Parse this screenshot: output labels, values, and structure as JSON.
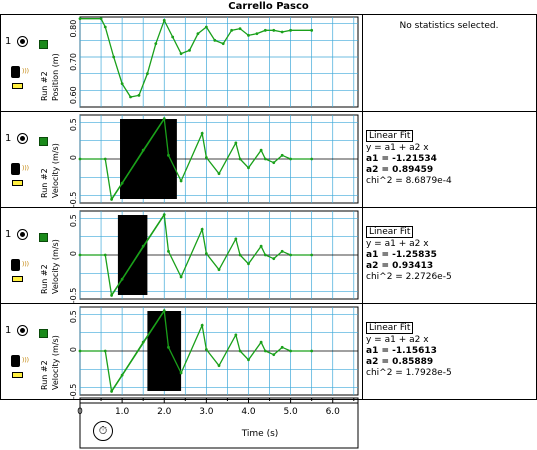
{
  "window": {
    "title": "Carrello Pasco"
  },
  "rows": [
    {
      "run": "1",
      "ylabel_run": "Run #2",
      "ylabel_qty": "Position (m)",
      "ticks": [
        "0.80",
        "0.70",
        "0.60"
      ]
    },
    {
      "run": "1",
      "ylabel_run": "Run #2",
      "ylabel_qty": "Velocity (m/s)",
      "ticks": [
        "0.5",
        "0",
        "-0.5"
      ]
    },
    {
      "run": "1",
      "ylabel_run": "Run #2",
      "ylabel_qty": "Velocity (m/s)",
      "ticks": [
        "0.5",
        "0",
        "-0.5"
      ]
    },
    {
      "run": "1",
      "ylabel_run": "Run #2",
      "ylabel_qty": "Velocity (m/s)",
      "ticks": [
        "0.5",
        "0",
        "-0.5"
      ]
    }
  ],
  "stats": {
    "none_text": "No statistics selected.",
    "fits": [
      {
        "label": "Linear Fit",
        "eq": "y = a1 + a2 x",
        "a1": "a1 = -1.21534",
        "a2": "a2 = 0.89459",
        "chi": "chi^2 = 8.6879e-4"
      },
      {
        "label": "Linear Fit",
        "eq": "y = a1 + a2 x",
        "a1": "a1 = -1.25835",
        "a2": "a2 = 0.93413",
        "chi": "chi^2 = 2.2726e-5"
      },
      {
        "label": "Linear Fit",
        "eq": "y = a1 + a2 x",
        "a1": "a1 = -1.15613",
        "a2": "a2 = 0.85889",
        "chi": "chi^2 = 1.7928e-5"
      }
    ]
  },
  "xaxis": {
    "label": "Time (s)",
    "ticks": [
      "0",
      "1.0",
      "2.0",
      "3.0",
      "4.0",
      "5.0",
      "6.0"
    ]
  },
  "colors": {
    "trace": "#1aa01a",
    "grid": "#3fa9d9",
    "select": "#000000"
  },
  "icons": {
    "timer": "stopwatch-icon",
    "sensor": "motion-sensor-icon"
  },
  "chart_data": [
    {
      "type": "line",
      "xlabel": "Time (s)",
      "ylabel": "Position (m)",
      "ylim": [
        0.55,
        0.82
      ],
      "x": [
        0,
        0.5,
        0.6,
        0.8,
        1.0,
        1.2,
        1.4,
        1.6,
        1.8,
        2.0,
        2.2,
        2.4,
        2.6,
        2.8,
        3.0,
        3.2,
        3.4,
        3.6,
        3.8,
        4.0,
        4.2,
        4.4,
        4.6,
        4.8,
        5.0,
        5.5
      ],
      "y": [
        0.815,
        0.815,
        0.79,
        0.7,
        0.62,
        0.58,
        0.585,
        0.65,
        0.74,
        0.81,
        0.76,
        0.71,
        0.72,
        0.77,
        0.79,
        0.75,
        0.74,
        0.78,
        0.785,
        0.765,
        0.77,
        0.78,
        0.78,
        0.775,
        0.78,
        0.78
      ]
    },
    {
      "type": "line",
      "xlabel": "Time (s)",
      "ylabel": "Velocity (m/s)",
      "ylim": [
        -0.6,
        0.6
      ],
      "x": [
        0,
        0.6,
        0.75,
        1.0,
        1.5,
        2.0,
        2.1,
        2.4,
        2.9,
        3.0,
        3.3,
        3.7,
        3.8,
        4.0,
        4.3,
        4.4,
        4.6,
        4.8,
        5.0,
        5.5
      ],
      "y": [
        0,
        0,
        -0.55,
        -0.33,
        0.12,
        0.55,
        0.05,
        -0.3,
        0.35,
        0.02,
        -0.2,
        0.22,
        0.0,
        -0.12,
        0.12,
        0,
        -0.05,
        0.05,
        0,
        0
      ]
    },
    {
      "type": "line",
      "xlabel": "Time (s)",
      "ylabel": "Velocity (m/s)",
      "ylim": [
        -0.6,
        0.6
      ],
      "x": [
        0,
        0.6,
        0.75,
        1.0,
        1.5,
        2.0,
        2.1,
        2.4,
        2.9,
        3.0,
        3.3,
        3.7,
        3.8,
        4.0,
        4.3,
        4.4,
        4.6,
        4.8,
        5.0,
        5.5
      ],
      "y": [
        0,
        0,
        -0.55,
        -0.33,
        0.12,
        0.55,
        0.05,
        -0.3,
        0.35,
        0.02,
        -0.2,
        0.22,
        0.0,
        -0.12,
        0.12,
        0,
        -0.05,
        0.05,
        0,
        0
      ]
    },
    {
      "type": "line",
      "xlabel": "Time (s)",
      "ylabel": "Velocity (m/s)",
      "ylim": [
        -0.6,
        0.6
      ],
      "x": [
        0,
        0.6,
        0.75,
        1.0,
        1.5,
        2.0,
        2.1,
        2.4,
        2.9,
        3.0,
        3.3,
        3.7,
        3.8,
        4.0,
        4.3,
        4.4,
        4.6,
        4.8,
        5.0,
        5.5
      ],
      "y": [
        0,
        0,
        -0.55,
        -0.33,
        0.12,
        0.55,
        0.05,
        -0.3,
        0.35,
        0.02,
        -0.2,
        0.22,
        0.0,
        -0.12,
        0.12,
        0,
        -0.05,
        0.05,
        0,
        0
      ]
    }
  ],
  "selections": [
    {
      "x0": 0.0,
      "x1": 0.0
    },
    {
      "x0": 0.95,
      "x1": 2.3
    },
    {
      "x0": 0.9,
      "x1": 1.6
    },
    {
      "x0": 1.6,
      "x1": 2.4
    }
  ]
}
